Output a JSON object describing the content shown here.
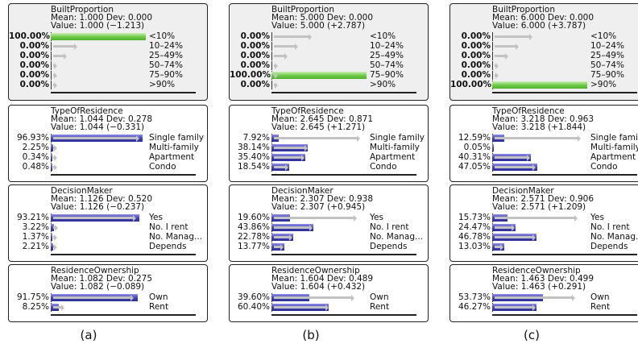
{
  "panels": [
    {
      "caption": "(a)",
      "nodes": [
        {
          "title": "BuiltProportion",
          "stats": "Mean: 1.000 Dev: 0.000",
          "value": "Value: 1.000 (−1.213)",
          "evidence": true,
          "rows": [
            {
              "pct": "100.00%",
              "label": "<10%",
              "bar": 1.0,
              "prior": 0.0
            },
            {
              "pct": "0.00%",
              "label": "10–24%",
              "bar": 0,
              "prior": 0.28
            },
            {
              "pct": "0.00%",
              "label": "25–49%",
              "bar": 0,
              "prior": 0.17
            },
            {
              "pct": "0.00%",
              "label": "50–74%",
              "bar": 0,
              "prior": 0.06
            },
            {
              "pct": "0.00%",
              "label": "75–90%",
              "bar": 0,
              "prior": 0.03
            },
            {
              "pct": "0.00%",
              "label": ">90%",
              "bar": 0,
              "prior": 0.01
            }
          ]
        },
        {
          "title": "TypeOfResidence",
          "stats": "Mean: 1.044 Dev: 0.278",
          "value": "Value: 1.044 (−0.331)",
          "rows": [
            {
              "pct": "96.93%",
              "label": "Single family",
              "bar": 0.9693,
              "prior": 0.93
            },
            {
              "pct": "2.25%",
              "label": "Multi-family",
              "bar": 0.0225,
              "prior": 0.035
            },
            {
              "pct": "0.34%",
              "label": "Apartment",
              "bar": 0.0034,
              "prior": 0.02
            },
            {
              "pct": "0.48%",
              "label": "Condo",
              "bar": 0.0048,
              "prior": 0.015
            }
          ]
        },
        {
          "title": "DecisionMaker",
          "stats": "Mean: 1.126 Dev: 0.520",
          "value": "Value: 1.126 (−0.237)",
          "rows": [
            {
              "pct": "93.21%",
              "label": "Yes",
              "bar": 0.9321,
              "prior": 0.9
            },
            {
              "pct": "3.22%",
              "label": "No. I rent",
              "bar": 0.0322,
              "prior": 0.08
            },
            {
              "pct": "1.37%",
              "label": "No. Manag...",
              "bar": 0.0137,
              "prior": 0.035
            },
            {
              "pct": "2.21%",
              "label": "Depends",
              "bar": 0.0221,
              "prior": 0.03
            }
          ]
        },
        {
          "title": "ResidenceOwnership",
          "stats": "Mean: 1.082 Dev: 0.275",
          "value": "Value: 1.082 (−0.089)",
          "rows": [
            {
              "pct": "91.75%",
              "label": "Own",
              "bar": 0.9175,
              "prior": 0.87
            },
            {
              "pct": "8.25%",
              "label": "Rent",
              "bar": 0.0825,
              "prior": 0.14
            }
          ]
        }
      ]
    },
    {
      "caption": "(b)",
      "nodes": [
        {
          "title": "BuiltProportion",
          "stats": "Mean: 5.000 Dev: 0.000",
          "value": "Value: 5.000 (+2.787)",
          "evidence": true,
          "rows": [
            {
              "pct": "0.00%",
              "label": "<10%",
              "bar": 0,
              "prior": 0.42
            },
            {
              "pct": "0.00%",
              "label": "10–24%",
              "bar": 0,
              "prior": 0.28
            },
            {
              "pct": "0.00%",
              "label": "25–49%",
              "bar": 0,
              "prior": 0.17
            },
            {
              "pct": "0.00%",
              "label": "50–74%",
              "bar": 0,
              "prior": 0.06
            },
            {
              "pct": "100.00%",
              "label": "75–90%",
              "bar": 1.0,
              "prior": 0.03
            },
            {
              "pct": "0.00%",
              "label": ">90%",
              "bar": 0,
              "prior": 0.01
            }
          ]
        },
        {
          "title": "TypeOfResidence",
          "stats": "Mean: 2.645 Dev: 0.871",
          "value": "Value: 2.645 (+1.271)",
          "rows": [
            {
              "pct": "7.92%",
              "label": "Single family",
              "bar": 0.0792,
              "prior": 0.93
            },
            {
              "pct": "38.14%",
              "label": "Multi-family",
              "bar": 0.3814,
              "prior": 0.38
            },
            {
              "pct": "35.40%",
              "label": "Apartment",
              "bar": 0.354,
              "prior": 0.35
            },
            {
              "pct": "18.54%",
              "label": "Condo",
              "bar": 0.1854,
              "prior": 0.18
            }
          ]
        },
        {
          "title": "DecisionMaker",
          "stats": "Mean: 2.307 Dev: 0.938",
          "value": "Value: 2.307 (+0.945)",
          "rows": [
            {
              "pct": "19.60%",
              "label": "Yes",
              "bar": 0.196,
              "prior": 0.9
            },
            {
              "pct": "43.86%",
              "label": "No. I rent",
              "bar": 0.4386,
              "prior": 0.43
            },
            {
              "pct": "22.78%",
              "label": "No. Manag...",
              "bar": 0.2278,
              "prior": 0.22
            },
            {
              "pct": "13.77%",
              "label": "Depends",
              "bar": 0.1377,
              "prior": 0.13
            }
          ]
        },
        {
          "title": "ResidenceOwnership",
          "stats": "Mean: 1.604 Dev: 0.489",
          "value": "Value: 1.604 (+0.432)",
          "rows": [
            {
              "pct": "39.60%",
              "label": "Own",
              "bar": 0.396,
              "prior": 0.87
            },
            {
              "pct": "60.40%",
              "label": "Rent",
              "bar": 0.604,
              "prior": 0.6
            }
          ]
        }
      ]
    },
    {
      "caption": "(c)",
      "nodes": [
        {
          "title": "BuiltProportion",
          "stats": "Mean: 6.000 Dev: 0.000",
          "value": "Value: 6.000 (+3.787)",
          "evidence": true,
          "rows": [
            {
              "pct": "0.00%",
              "label": "<10%",
              "bar": 0,
              "prior": 0.42
            },
            {
              "pct": "0.00%",
              "label": "10–24%",
              "bar": 0,
              "prior": 0.28
            },
            {
              "pct": "0.00%",
              "label": "25–49%",
              "bar": 0,
              "prior": 0.17
            },
            {
              "pct": "0.00%",
              "label": "50–74%",
              "bar": 0,
              "prior": 0.06
            },
            {
              "pct": "0.00%",
              "label": "75–90%",
              "bar": 0,
              "prior": 0.03
            },
            {
              "pct": "100.00%",
              "label": ">90%",
              "bar": 1.0,
              "prior": 0.0
            }
          ]
        },
        {
          "title": "TypeOfResidence",
          "stats": "Mean: 3.218 Dev: 0.963",
          "value": "Value: 3.218 (+1.844)",
          "rows": [
            {
              "pct": "12.59%",
              "label": "Single family",
              "bar": 0.1259,
              "prior": 0.93
            },
            {
              "pct": "0.05%",
              "label": "Multi-family",
              "bar": 0.0005,
              "prior": 0.0
            },
            {
              "pct": "40.31%",
              "label": "Apartment",
              "bar": 0.4031,
              "prior": 0.4
            },
            {
              "pct": "47.05%",
              "label": "Condo",
              "bar": 0.4705,
              "prior": 0.46
            }
          ]
        },
        {
          "title": "DecisionMaker",
          "stats": "Mean: 2.571 Dev: 0.906",
          "value": "Value: 2.571 (+1.209)",
          "rows": [
            {
              "pct": "15.73%",
              "label": "Yes",
              "bar": 0.1573,
              "prior": 0.9
            },
            {
              "pct": "24.47%",
              "label": "No. I rent",
              "bar": 0.2447,
              "prior": 0.24
            },
            {
              "pct": "46.78%",
              "label": "No. Manag...",
              "bar": 0.4678,
              "prior": 0.46
            },
            {
              "pct": "13.03%",
              "label": "Depends",
              "bar": 0.1303,
              "prior": 0.12
            }
          ]
        },
        {
          "title": "ResidenceOwnership",
          "stats": "Mean: 1.463 Dev: 0.499",
          "value": "Value: 1.463 (+0.291)",
          "rows": [
            {
              "pct": "53.73%",
              "label": "Own",
              "bar": 0.5373,
              "prior": 0.87
            },
            {
              "pct": "46.27%",
              "label": "Rent",
              "bar": 0.4627,
              "prior": 0.46
            }
          ]
        }
      ]
    }
  ]
}
